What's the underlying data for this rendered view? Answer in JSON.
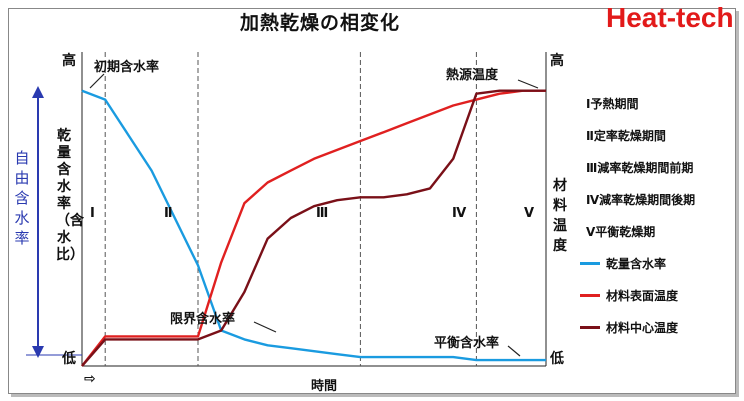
{
  "title": "加熱乾燥の相変化",
  "brand": "Heat-tech",
  "colors": {
    "moisture": "#1a9be0",
    "surface": "#e02020",
    "center": "#7a1018",
    "axisblue": "#2a3ab0"
  },
  "labels": {
    "initial_moisture": "初期含水率",
    "heat_source_temp": "熱源温度",
    "critical_moisture": "限界含水率",
    "equilibrium_moisture": "平衡含水率",
    "high_left": "高",
    "low_left": "低",
    "high_right": "高",
    "low_right": "低",
    "free_moisture": "自由含水率",
    "y_left": "乾量含水率（含水比）",
    "y_right": "材料温度",
    "xlabel": "時間",
    "arrow": "⇨"
  },
  "legend": [
    {
      "label": "Ⅰ予熱期間"
    },
    {
      "label": "Ⅱ定率乾燥期間"
    },
    {
      "label": "Ⅲ減率乾燥期間前期"
    },
    {
      "label": "Ⅳ減率乾燥期間後期"
    },
    {
      "label": "Ⅴ平衡乾燥期"
    },
    {
      "label": "乾量含水率",
      "color": "#1a9be0"
    },
    {
      "label": "材料表面温度",
      "color": "#e02020"
    },
    {
      "label": "材料中心温度",
      "color": "#7a1018"
    }
  ],
  "chart_data": {
    "type": "line",
    "x": [
      0,
      1,
      2,
      3,
      4,
      5,
      6,
      7,
      8,
      9,
      10,
      11,
      12,
      13,
      14,
      15,
      16,
      17,
      18,
      19,
      20
    ],
    "phases": [
      "Ⅰ",
      "Ⅱ",
      "Ⅲ",
      "Ⅳ",
      "Ⅴ"
    ],
    "phase_boundaries": [
      1,
      5,
      12,
      17
    ],
    "series": [
      {
        "name": "乾量含水率",
        "values": [
          0.93,
          0.9,
          0.78,
          0.66,
          0.5,
          0.34,
          0.12,
          0.09,
          0.07,
          0.06,
          0.05,
          0.04,
          0.03,
          0.03,
          0.03,
          0.03,
          0.03,
          0.02,
          0.02,
          0.02,
          0.02
        ]
      },
      {
        "name": "材料表面温度",
        "values": [
          0.0,
          0.1,
          0.1,
          0.1,
          0.1,
          0.1,
          0.35,
          0.55,
          0.62,
          0.66,
          0.7,
          0.73,
          0.76,
          0.79,
          0.82,
          0.85,
          0.88,
          0.9,
          0.92,
          0.93,
          0.93
        ]
      },
      {
        "name": "材料中心温度",
        "values": [
          0.0,
          0.09,
          0.09,
          0.09,
          0.09,
          0.09,
          0.12,
          0.25,
          0.43,
          0.5,
          0.54,
          0.56,
          0.57,
          0.57,
          0.58,
          0.6,
          0.7,
          0.92,
          0.93,
          0.93,
          0.93
        ]
      }
    ],
    "ylim": [
      0,
      1
    ],
    "xlabel": "時間",
    "ylabel": "乾量含水率（含水比）",
    "ylabel_right": "材料温度"
  }
}
